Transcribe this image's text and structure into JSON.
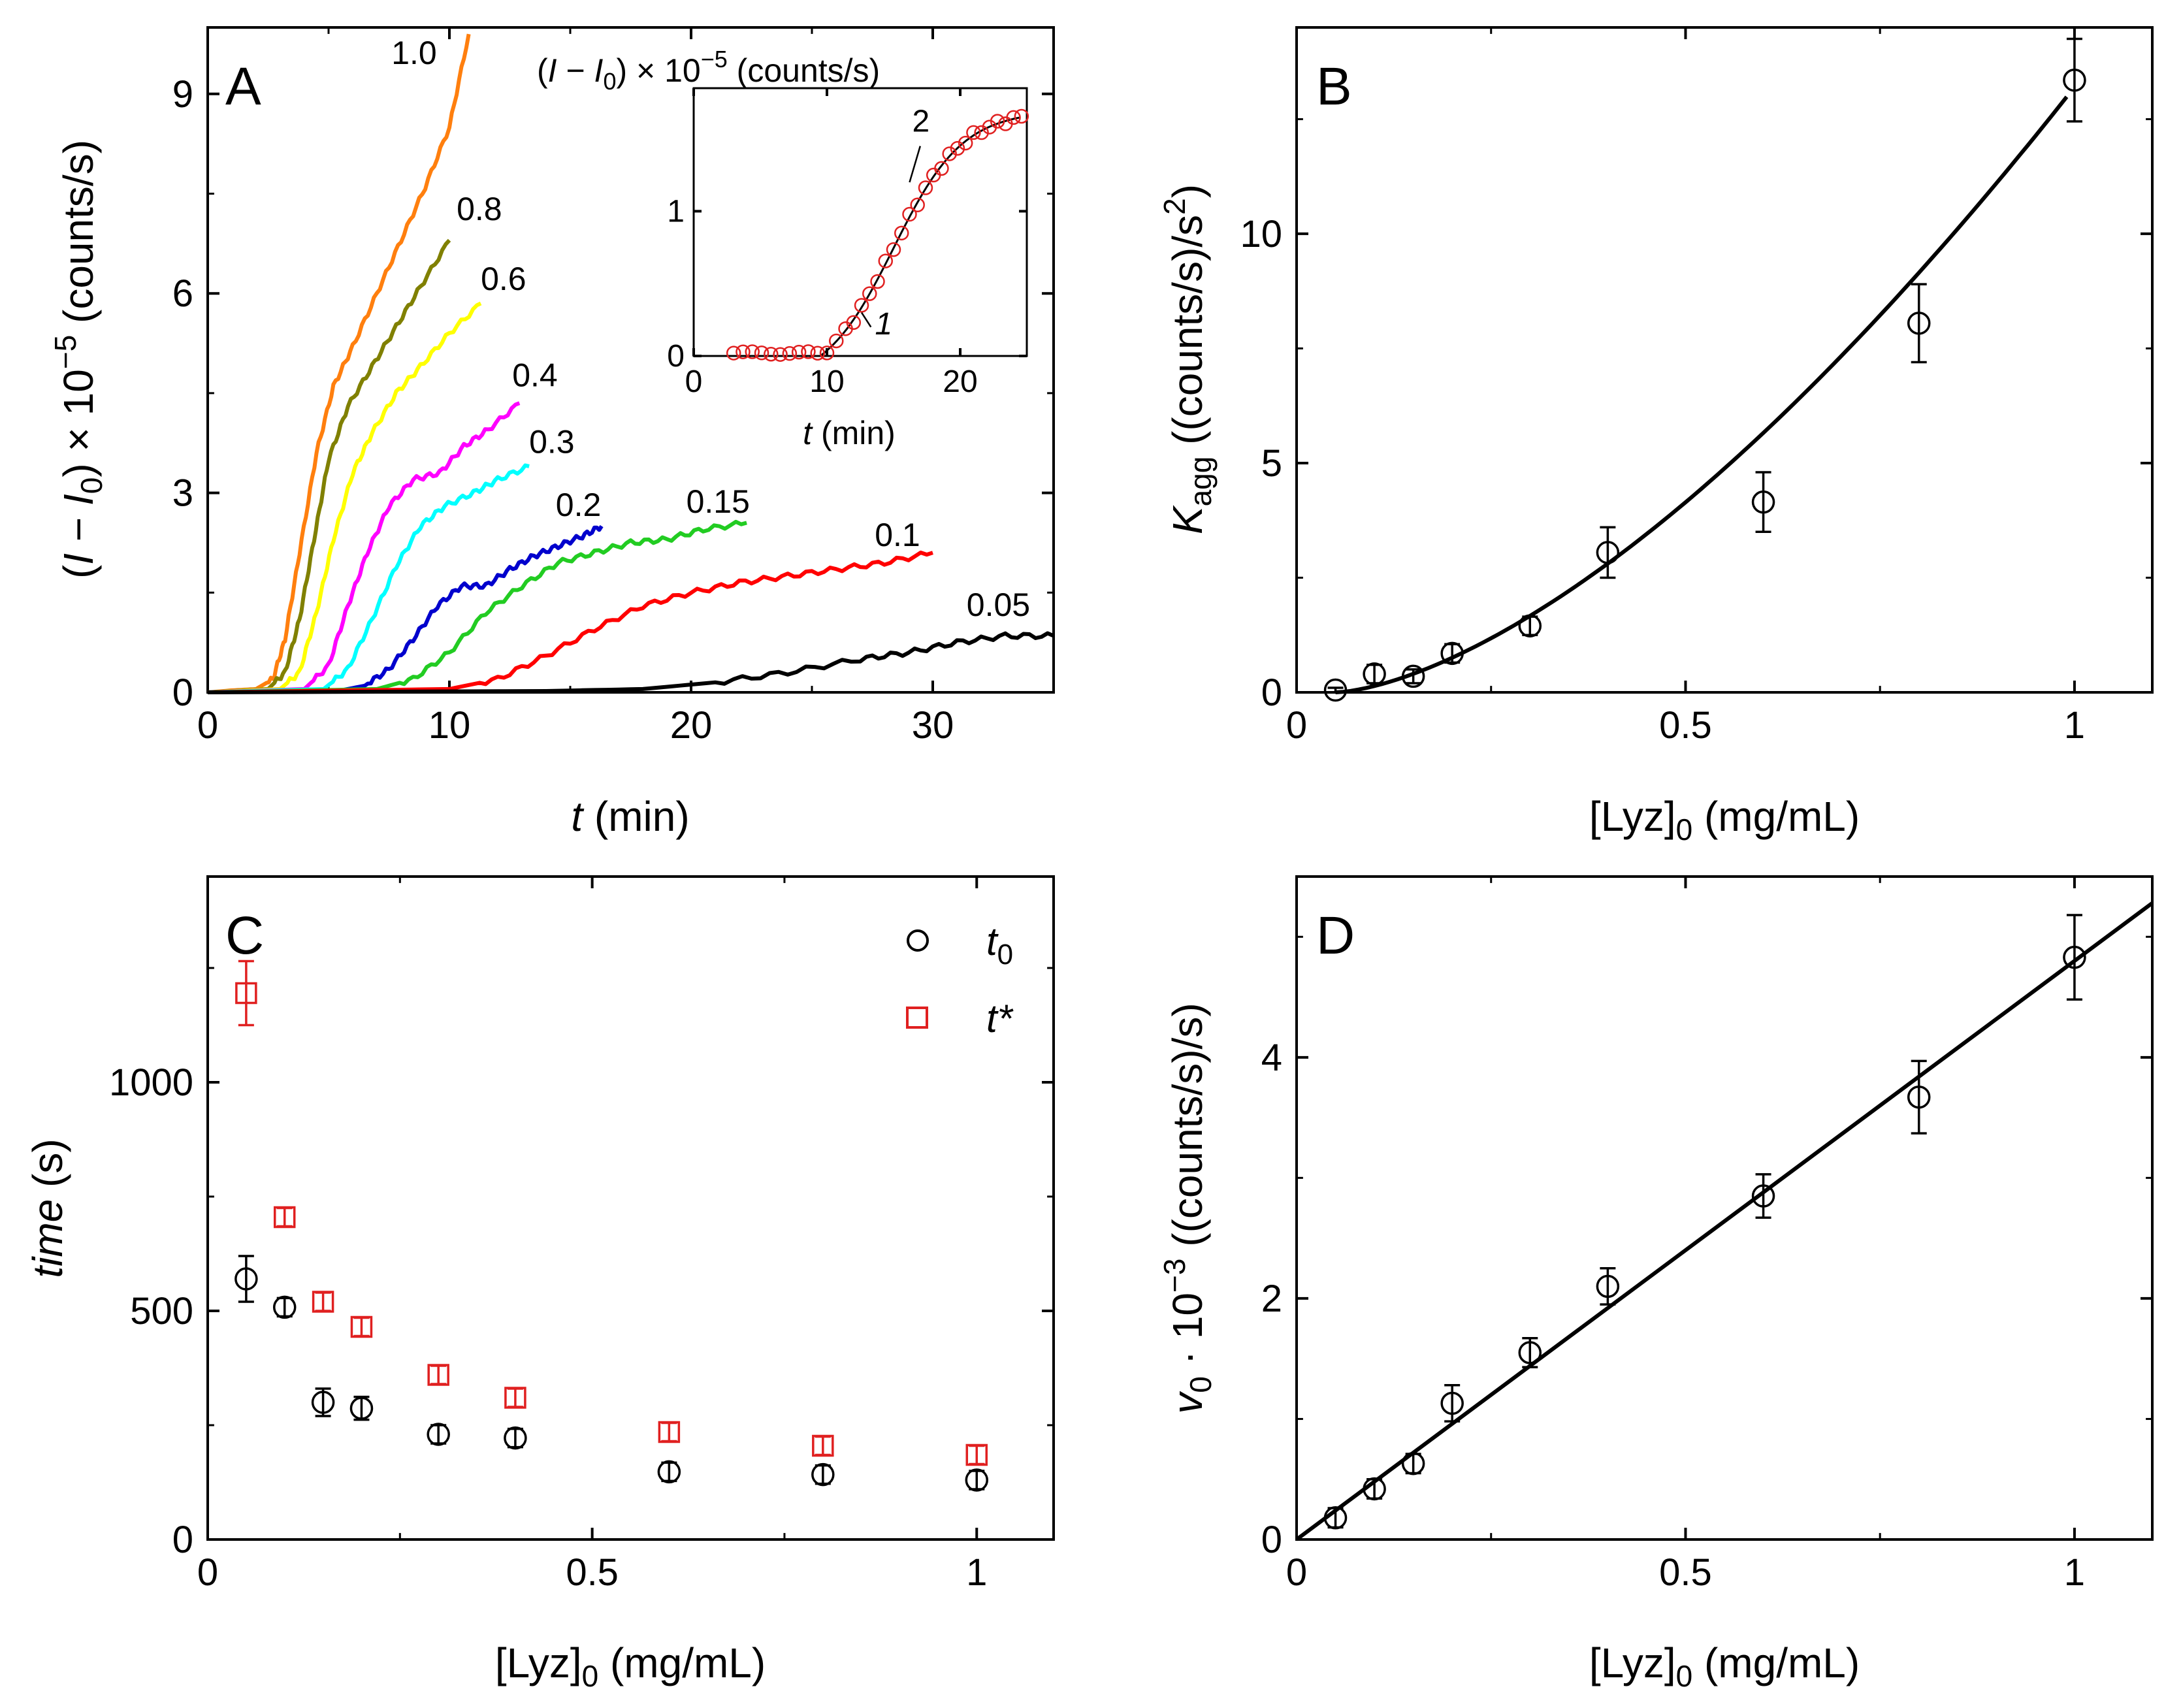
{
  "chart_data": [
    {
      "panel": "A",
      "type": "line",
      "xlabel_italic": "t",
      "xlabel_rest": "(min)",
      "ylabel": "(I − I0) × 10−5 (counts/s)",
      "ylabel_parts": {
        "open": "(",
        "i": "I",
        "minus": " − ",
        "i0": "I",
        "i0_sub": "0",
        "times": ") × 10",
        "exp": "−5",
        "unit": " (counts/s)"
      },
      "xlim": [
        0,
        35
      ],
      "ylim": [
        0,
        10
      ],
      "xticks": [
        0,
        10,
        20,
        30
      ],
      "yticks": [
        0,
        3,
        6,
        9
      ],
      "xtick_labels": [
        "0",
        "10",
        "20",
        "30"
      ],
      "ytick_labels": [
        "0",
        "3",
        "6",
        "9"
      ],
      "series": [
        {
          "name": "1.0",
          "color": "#ff7f0e",
          "label_x": 7.6,
          "label_y": 9.45,
          "x": [
            0,
            1,
            2,
            2.7,
            3.2,
            3.8,
            4.5,
            5.2,
            6,
            7,
            8,
            9,
            10,
            10.8
          ],
          "y": [
            0,
            0.03,
            0.05,
            0.2,
            0.8,
            2.1,
            3.6,
            4.6,
            5.2,
            6.0,
            6.8,
            7.6,
            8.5,
            9.9
          ]
        },
        {
          "name": "0.8",
          "color": "#808000",
          "label_x": 10.3,
          "label_y": 7.1,
          "x": [
            0,
            2.5,
            3.2,
            3.8,
            4.4,
            5.0,
            5.8,
            6.8,
            7.8,
            8.8,
            10.0
          ],
          "y": [
            0,
            0.05,
            0.3,
            1.1,
            2.3,
            3.5,
            4.3,
            4.9,
            5.5,
            6.1,
            6.8
          ]
        },
        {
          "name": "0.6",
          "color": "#ffff00",
          "label_x": 11.3,
          "label_y": 6.05,
          "x": [
            0,
            3.0,
            3.8,
            4.5,
            5.2,
            6.0,
            6.8,
            7.8,
            8.8,
            10.0,
            11.3
          ],
          "y": [
            0,
            0.05,
            0.3,
            1.2,
            2.3,
            3.3,
            3.9,
            4.5,
            4.9,
            5.4,
            5.85
          ]
        },
        {
          "name": "0.4",
          "color": "#ff00ff",
          "label_x": 12.6,
          "label_y": 4.6,
          "x": [
            0,
            4.0,
            5.0,
            5.8,
            6.6,
            7.5,
            8.5,
            9.6,
            10.6,
            11.6,
            12.9
          ],
          "y": [
            0,
            0.05,
            0.4,
            1.3,
            2.1,
            2.8,
            3.2,
            3.3,
            3.7,
            3.95,
            4.35
          ]
        },
        {
          "name": "0.3",
          "color": "#00ffff",
          "label_x": 13.3,
          "label_y": 3.6,
          "x": [
            0,
            4.8,
            5.8,
            6.8,
            7.8,
            8.8,
            9.8,
            11.0,
            12.0,
            13.3
          ],
          "y": [
            0,
            0.05,
            0.35,
            1.1,
            1.9,
            2.5,
            2.8,
            3.0,
            3.2,
            3.4
          ]
        },
        {
          "name": "0.2",
          "color": "#0000cd",
          "label_x": 14.4,
          "label_y": 2.65,
          "x": [
            0,
            5.5,
            6.5,
            7.5,
            8.5,
            9.5,
            10.5,
            11.5,
            12.5,
            13.5,
            14.5,
            15.5,
            16.3
          ],
          "y": [
            0,
            0.03,
            0.1,
            0.35,
            0.8,
            1.3,
            1.6,
            1.6,
            1.85,
            2.05,
            2.2,
            2.35,
            2.5
          ]
        },
        {
          "name": "0.15",
          "color": "#22cc22",
          "label_x": 19.8,
          "label_y": 2.7,
          "x": [
            0,
            7.0,
            8.5,
            10.0,
            11.5,
            13.0,
            14.5,
            16.0,
            17.5,
            19.0,
            20.5,
            22.3
          ],
          "y": [
            0,
            0.05,
            0.2,
            0.6,
            1.2,
            1.6,
            1.95,
            2.1,
            2.25,
            2.3,
            2.45,
            2.55
          ]
        },
        {
          "name": "0.1",
          "color": "#ff0000",
          "label_x": 27.6,
          "label_y": 2.2,
          "x": [
            0,
            10.0,
            12.0,
            14.0,
            16.0,
            18.0,
            20.0,
            22.0,
            24.0,
            26.0,
            28.0,
            30.0
          ],
          "y": [
            0,
            0.05,
            0.2,
            0.55,
            0.95,
            1.3,
            1.5,
            1.65,
            1.75,
            1.85,
            1.95,
            2.1
          ]
        },
        {
          "name": "0.05",
          "color": "#000000",
          "label_x": 31.4,
          "label_y": 1.15,
          "x": [
            0,
            14.0,
            18.0,
            21.0,
            24.0,
            27.0,
            29.0,
            31.0,
            33.0,
            35.0
          ],
          "y": [
            0,
            0.02,
            0.05,
            0.15,
            0.3,
            0.5,
            0.6,
            0.75,
            0.85,
            0.85
          ]
        }
      ],
      "inset": {
        "title": "(I − I0) × 10−5 (counts/s)",
        "title_parts": {
          "open": "(",
          "i": "I",
          "minus": " − ",
          "i0": "I",
          "i0_sub": "0",
          "times": ") × 10",
          "exp": "−5",
          "unit": " (counts/s)"
        },
        "xlabel_italic": "t",
        "xlabel_rest": "(min)",
        "xlim": [
          0,
          25
        ],
        "ylim": [
          0,
          1.85
        ],
        "xticks": [
          0,
          10,
          20
        ],
        "yticks": [
          0,
          1
        ],
        "xtick_labels": [
          "0",
          "10",
          "20"
        ],
        "ytick_labels": [
          "0",
          "1"
        ],
        "point_color": "#e02020",
        "points_x": [
          3,
          3.7,
          4.4,
          5.1,
          5.8,
          6.5,
          7.2,
          7.9,
          8.6,
          9.3,
          10,
          10.7,
          11.4,
          12.0,
          12.6,
          13.2,
          13.8,
          14.4,
          15.0,
          15.6,
          16.2,
          16.8,
          17.4,
          18.0,
          18.6,
          19.2,
          19.8,
          20.4,
          21.0,
          21.6,
          22.2,
          22.8,
          23.4,
          24.0,
          24.6
        ],
        "fit_curve": {
          "t0": 9.5,
          "center": 15.0,
          "width": 2.6,
          "amp": 1.9
        },
        "annotations": [
          {
            "text": "2",
            "tx": 16.4,
            "ty": 1.55
          },
          {
            "text": "1",
            "tx": 13.6,
            "ty": 0.15
          }
        ]
      }
    },
    {
      "panel": "B",
      "type": "scatter",
      "xlabel": "[Lyz]0 (mg/mL)",
      "xlabel_parts": {
        "main": "[Lyz]",
        "sub": "0",
        "unit": " (mg/mL)"
      },
      "ylabel": "Kagg ((counts/s)/s2)",
      "ylabel_parts": {
        "k": "K",
        "k_sub": "agg",
        "unit": " ((counts/s)/s",
        "exp": "2",
        "close": ")"
      },
      "xlim": [
        0,
        1.1
      ],
      "ylim": [
        0,
        14.5
      ],
      "xticks": [
        0,
        0.5,
        1
      ],
      "yticks": [
        0,
        5,
        10
      ],
      "xtick_labels": [
        "0",
        "0.5",
        "1"
      ],
      "ytick_labels": [
        "0",
        "5",
        "10"
      ],
      "x": [
        0.05,
        0.1,
        0.15,
        0.2,
        0.3,
        0.4,
        0.6,
        0.8,
        1.0
      ],
      "y": [
        0.05,
        0.4,
        0.35,
        0.85,
        1.45,
        3.05,
        4.15,
        8.05,
        13.35
      ],
      "yerr": [
        0.05,
        0.2,
        0.15,
        0.2,
        0.2,
        0.55,
        0.65,
        0.85,
        0.9
      ],
      "fit": {
        "type": "power",
        "x0": 0.05,
        "coef": 13.2,
        "exp": 1.55
      }
    },
    {
      "panel": "C",
      "type": "scatter",
      "xlabel": "[Lyz]0 (mg/mL)",
      "xlabel_parts": {
        "main": "[Lyz]",
        "sub": "0",
        "unit": " (mg/mL)"
      },
      "ylabel": "time (s)",
      "ylabel_parts": {
        "italic": "time",
        "unit": " (s)"
      },
      "xlim": [
        0,
        1.1
      ],
      "ylim": [
        0,
        1450
      ],
      "xticks": [
        0,
        0.5,
        1
      ],
      "yticks": [
        0,
        500,
        1000
      ],
      "xtick_labels": [
        "0",
        "0.5",
        "1"
      ],
      "ytick_labels": [
        "0",
        "500",
        "1000"
      ],
      "series": [
        {
          "name": "t0",
          "legend_main": "t",
          "legend_sub": "0",
          "marker": "circle",
          "color": "#000000",
          "x": [
            0.05,
            0.1,
            0.15,
            0.2,
            0.3,
            0.4,
            0.6,
            0.8,
            1.0
          ],
          "y": [
            570,
            508,
            300,
            287,
            230,
            222,
            148,
            142,
            130
          ],
          "yerr": [
            50,
            20,
            30,
            25,
            20,
            20,
            20,
            20,
            20
          ]
        },
        {
          "name": "t*",
          "legend_main": "t",
          "legend_sub": "*",
          "marker": "square",
          "color": "#e02020",
          "x": [
            0.05,
            0.1,
            0.15,
            0.2,
            0.3,
            0.4,
            0.6,
            0.8,
            1.0
          ],
          "y": [
            1195,
            705,
            520,
            465,
            360,
            310,
            235,
            205,
            185
          ],
          "yerr": [
            70,
            20,
            20,
            20,
            20,
            20,
            20,
            20,
            20
          ]
        }
      ]
    },
    {
      "panel": "D",
      "type": "scatter",
      "xlabel": "[Lyz]0 (mg/mL)",
      "xlabel_parts": {
        "main": "[Lyz]",
        "sub": "0",
        "unit": " (mg/mL)"
      },
      "ylabel": "v0 · 10−3 ((counts/s)/s)",
      "ylabel_parts": {
        "v": "v",
        "v_sub": "0",
        "dot": " · 10",
        "exp": "−3",
        "unit": " ((counts/s)/s)"
      },
      "xlim": [
        0,
        1.1
      ],
      "ylim": [
        0,
        5.5
      ],
      "xticks": [
        0,
        0.5,
        1
      ],
      "yticks": [
        0,
        2,
        4
      ],
      "xtick_labels": [
        "0",
        "0.5",
        "1"
      ],
      "ytick_labels": [
        "0",
        "2",
        "4"
      ],
      "x": [
        0.05,
        0.1,
        0.15,
        0.2,
        0.3,
        0.4,
        0.6,
        0.8,
        1.0
      ],
      "y": [
        0.18,
        0.42,
        0.63,
        1.13,
        1.55,
        2.1,
        2.85,
        3.67,
        4.83
      ],
      "yerr": [
        0.08,
        0.08,
        0.08,
        0.15,
        0.12,
        0.15,
        0.18,
        0.3,
        0.35
      ],
      "fit": {
        "type": "linear",
        "slope": 4.8,
        "intercept": 0
      }
    }
  ]
}
